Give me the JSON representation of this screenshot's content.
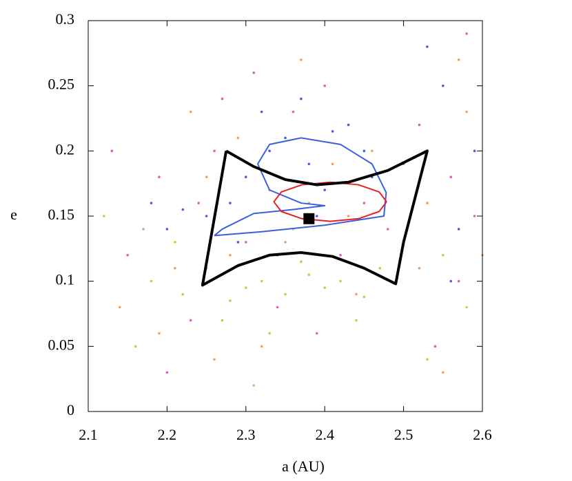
{
  "chart_data": {
    "type": "scatter",
    "xlabel": "a (AU)",
    "ylabel": "e",
    "xlim": [
      2.1,
      2.6
    ],
    "ylim": [
      0,
      0.3
    ],
    "xticks": [
      2.1,
      2.2,
      2.3,
      2.4,
      2.5,
      2.6
    ],
    "yticks": [
      0,
      0.05,
      0.1,
      0.15,
      0.2,
      0.25,
      0.3
    ],
    "series": [
      {
        "color": "#9ee03c",
        "x": [
          2.18,
          2.22,
          2.25,
          2.28,
          2.3,
          2.32,
          2.35,
          2.38,
          2.4,
          2.42,
          2.45,
          2.27,
          2.33,
          2.37,
          2.21,
          2.16,
          2.47,
          2.55,
          2.58,
          2.53,
          2.31,
          2.36,
          2.12,
          2.44
        ],
        "values": [
          0.1,
          0.09,
          0.11,
          0.085,
          0.095,
          0.1,
          0.09,
          0.105,
          0.095,
          0.1,
          0.088,
          0.07,
          0.06,
          0.115,
          0.13,
          0.05,
          0.11,
          0.12,
          0.08,
          0.04,
          0.02,
          0.14,
          0.15,
          0.07
        ]
      },
      {
        "color": "#3f5fe0",
        "x": [
          2.25,
          2.28,
          2.3,
          2.33,
          2.35,
          2.38,
          2.4,
          2.43,
          2.45,
          2.2,
          2.22,
          2.32,
          2.37,
          2.41,
          2.46,
          2.55,
          2.57,
          2.59,
          2.53,
          2.56,
          2.29,
          2.34,
          2.39,
          2.18
        ],
        "values": [
          0.15,
          0.16,
          0.18,
          0.2,
          0.21,
          0.19,
          0.17,
          0.22,
          0.2,
          0.14,
          0.155,
          0.23,
          0.24,
          0.215,
          0.18,
          0.25,
          0.14,
          0.2,
          0.28,
          0.1,
          0.13,
          0.12,
          0.15,
          0.16
        ]
      },
      {
        "color": "#e05cc0",
        "x": [
          2.15,
          2.19,
          2.23,
          2.26,
          2.31,
          2.36,
          2.42,
          2.48,
          2.2,
          2.24,
          2.34,
          2.4,
          2.54,
          2.56,
          2.58,
          2.52,
          2.57,
          2.59,
          2.13,
          2.27,
          2.39,
          2.45,
          2.3,
          2.5
        ],
        "values": [
          0.12,
          0.18,
          0.07,
          0.2,
          0.26,
          0.23,
          0.12,
          0.14,
          0.03,
          0.16,
          0.08,
          0.25,
          0.05,
          0.18,
          0.29,
          0.22,
          0.1,
          0.15,
          0.2,
          0.24,
          0.06,
          0.16,
          0.13,
          0.19
        ]
      },
      {
        "color": "#f0a060",
        "x": [
          2.17,
          2.21,
          2.25,
          2.29,
          2.33,
          2.37,
          2.41,
          2.44,
          2.14,
          2.23,
          2.35,
          2.46,
          2.53,
          2.55,
          2.58,
          2.6,
          2.19,
          2.28,
          2.38,
          2.43,
          2.52,
          2.57,
          2.32,
          2.26
        ],
        "values": [
          0.14,
          0.11,
          0.18,
          0.21,
          0.17,
          0.27,
          0.19,
          0.09,
          0.08,
          0.23,
          0.13,
          0.2,
          0.16,
          0.03,
          0.23,
          0.12,
          0.06,
          0.12,
          0.16,
          0.15,
          0.11,
          0.27,
          0.05,
          0.04
        ]
      }
    ],
    "curves": [
      {
        "color": "#3a5ee0",
        "x": [
          2.26,
          2.32,
          2.4,
          2.475,
          2.478,
          2.46,
          2.42,
          2.37,
          2.33,
          2.315,
          2.33,
          2.37,
          2.4,
          2.36,
          2.31,
          2.27,
          2.26
        ],
        "y": [
          0.135,
          0.138,
          0.143,
          0.15,
          0.168,
          0.19,
          0.205,
          0.21,
          0.205,
          0.19,
          0.17,
          0.16,
          0.158,
          0.155,
          0.152,
          0.14,
          0.135
        ]
      },
      {
        "color": "#e82020",
        "x": [
          2.4785,
          2.469,
          2.443,
          2.407,
          2.371,
          2.345,
          2.3355,
          2.345,
          2.371,
          2.407,
          2.443,
          2.469,
          2.4785
        ],
        "y": [
          0.161,
          0.1685,
          0.174,
          0.176,
          0.174,
          0.1685,
          0.161,
          0.1535,
          0.148,
          0.146,
          0.148,
          0.1535,
          0.161
        ]
      },
      {
        "color": "#000000",
        "x": [
          2.275,
          2.31,
          2.35,
          2.39,
          2.43,
          2.48,
          2.53,
          2.515,
          2.5,
          2.49,
          2.45,
          2.41,
          2.37,
          2.33,
          2.29,
          2.245,
          2.275
        ],
        "y": [
          0.2,
          0.188,
          0.178,
          0.174,
          0.176,
          0.185,
          0.2,
          0.165,
          0.13,
          0.098,
          0.11,
          0.119,
          0.122,
          0.12,
          0.112,
          0.097,
          0.2
        ]
      }
    ],
    "marker": {
      "x": 2.38,
      "y": 0.148,
      "color": "#000000"
    }
  }
}
